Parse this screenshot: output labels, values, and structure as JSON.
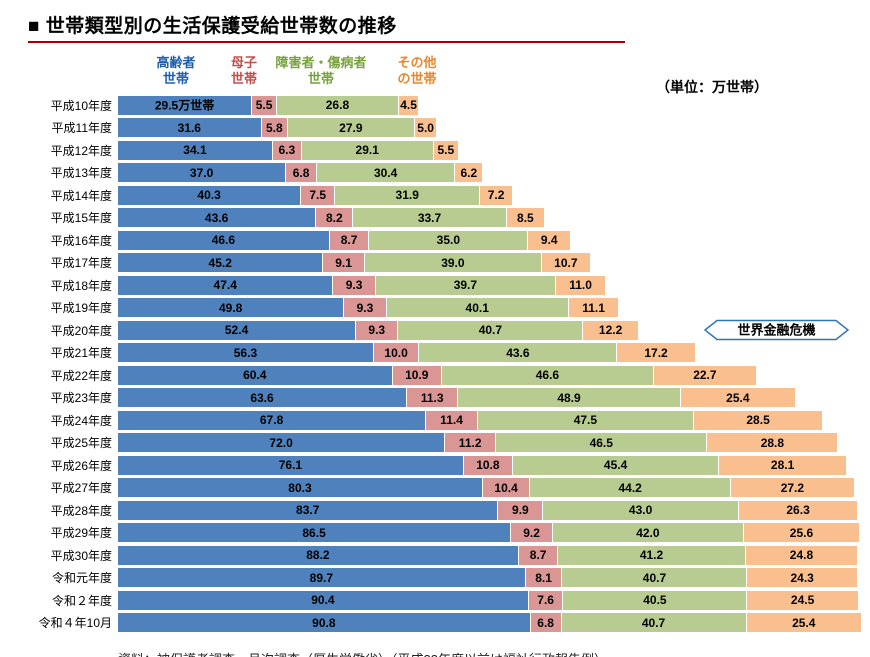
{
  "title": "■ 世帯類型別の生活保護受給世帯数の推移",
  "unit_label": "（単位：万世帯）",
  "annotation": {
    "label": "世界金融危機",
    "attached_category": "平成20年度",
    "border_color": "#2e75b6"
  },
  "footnote": "資料：被保護者調査　月次調査（厚生労働省）（平成23年度以前は福祉行政報告例）",
  "legend": [
    {
      "key": "elderly",
      "label": "高齢者\n世帯",
      "text_color": "#1f5fae"
    },
    {
      "key": "single-mother",
      "label": "母子\n世帯",
      "text_color": "#c0504d"
    },
    {
      "key": "disabled-sick",
      "label": "障害者・傷病者\n世帯",
      "text_color": "#76a33c"
    },
    {
      "key": "other",
      "label": "その他\nの世帯",
      "text_color": "#e8872f"
    }
  ],
  "chart_data": {
    "type": "bar",
    "orientation": "horizontal",
    "stacked": true,
    "unit": "万世帯",
    "xmax": 163.7,
    "grid": false,
    "first_value_label": "29.5万世帯",
    "categories": [
      "平成10年度",
      "平成11年度",
      "平成12年度",
      "平成13年度",
      "平成14年度",
      "平成15年度",
      "平成16年度",
      "平成17年度",
      "平成18年度",
      "平成19年度",
      "平成20年度",
      "平成21年度",
      "平成22年度",
      "平成23年度",
      "平成24年度",
      "平成25年度",
      "平成26年度",
      "平成27年度",
      "平成28年度",
      "平成29年度",
      "平成30年度",
      "令和元年度",
      "令和２年度",
      "令和４年10月"
    ],
    "series": [
      {
        "key": "elderly",
        "name": "高齢者世帯",
        "color": "#4f81bd",
        "values": [
          "29.5",
          "31.6",
          "34.1",
          "37.0",
          "40.3",
          "43.6",
          "46.6",
          "45.2",
          "47.4",
          "49.8",
          "52.4",
          "56.3",
          "60.4",
          "63.6",
          "67.8",
          "72.0",
          "76.1",
          "80.3",
          "83.7",
          "86.5",
          "88.2",
          "89.7",
          "90.4",
          "90.8"
        ]
      },
      {
        "key": "single-mother",
        "name": "母子世帯",
        "color": "#d99694",
        "values": [
          "5.5",
          "5.8",
          "6.3",
          "6.8",
          "7.5",
          "8.2",
          "8.7",
          "9.1",
          "9.3",
          "9.3",
          "9.3",
          "10.0",
          "10.9",
          "11.3",
          "11.4",
          "11.2",
          "10.8",
          "10.4",
          "9.9",
          "9.2",
          "8.7",
          "8.1",
          "7.6",
          "6.8"
        ]
      },
      {
        "key": "disabled-sick",
        "name": "障害者・傷病者世帯",
        "color": "#b8cc92",
        "values": [
          "26.8",
          "27.9",
          "29.1",
          "30.4",
          "31.9",
          "33.7",
          "35.0",
          "39.0",
          "39.7",
          "40.1",
          "40.7",
          "43.6",
          "46.6",
          "48.9",
          "47.5",
          "46.5",
          "45.4",
          "44.2",
          "43.0",
          "42.0",
          "41.2",
          "40.7",
          "40.5",
          "40.7"
        ]
      },
      {
        "key": "other",
        "name": "その他の世帯",
        "color": "#fabf8f",
        "values": [
          "4.5",
          "5.0",
          "5.5",
          "6.2",
          "7.2",
          "8.5",
          "9.4",
          "10.7",
          "11.0",
          "11.1",
          "12.2",
          "17.2",
          "22.7",
          "25.4",
          "28.5",
          "28.8",
          "28.1",
          "27.2",
          "26.3",
          "25.6",
          "24.8",
          "24.3",
          "24.5",
          "25.4"
        ]
      }
    ]
  }
}
